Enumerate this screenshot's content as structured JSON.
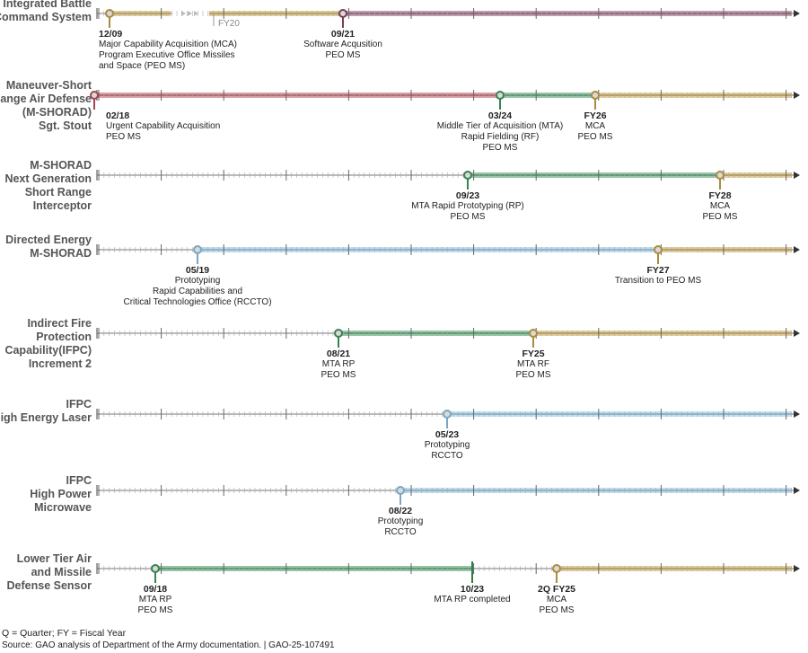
{
  "colors": {
    "mca": "#c9a44a",
    "software": "#8c4a6a",
    "urgent": "#c2505c",
    "mta": "#3f9a5e",
    "prototyping": "#8cc4e6",
    "axis": "#777777"
  },
  "rows": [
    {
      "title": [
        "Integrated Battle",
        "Command System"
      ],
      "fy_label": "FY20",
      "events": [
        {
          "date": "12/09",
          "lines": [
            "Major Capability Acquisition (MCA)",
            "Program Executive Office Missiles",
            "and Space (PEO MS)"
          ],
          "color": "mca"
        },
        {
          "date": "09/21",
          "lines": [
            "Software Acqusition",
            "PEO MS"
          ],
          "color": "software"
        }
      ]
    },
    {
      "title": [
        "Maneuver-Short",
        "Range Air Defense",
        "(M-SHORAD)",
        "Sgt. Stout"
      ],
      "events": [
        {
          "date": "02/18",
          "lines": [
            "Urgent Capability Acquisition",
            "PEO MS"
          ],
          "color": "urgent"
        },
        {
          "date": "03/24",
          "lines": [
            "Middle Tier of Acquisition (MTA)",
            "Rapid Fielding (RF)",
            "PEO MS"
          ],
          "color": "mta"
        },
        {
          "date": "FY26",
          "lines": [
            "MCA",
            "PEO MS"
          ],
          "color": "mca"
        }
      ]
    },
    {
      "title": [
        "M-SHORAD",
        "Next Generation",
        "Short Range",
        "Interceptor"
      ],
      "events": [
        {
          "date": "09/23",
          "lines": [
            "MTA Rapid Prototyping (RP)",
            "PEO MS"
          ],
          "color": "mta"
        },
        {
          "date": "FY28",
          "lines": [
            "MCA",
            "PEO MS"
          ],
          "color": "mca"
        }
      ]
    },
    {
      "title": [
        "Directed Energy",
        "M-SHORAD"
      ],
      "events": [
        {
          "date": "05/19",
          "lines": [
            "Prototyping",
            "Rapid Capabilities and",
            "Critical Technologies Office (RCCTO)"
          ],
          "color": "prototyping"
        },
        {
          "date": "FY27",
          "lines": [
            "Transition to PEO MS"
          ],
          "color": "mca"
        }
      ]
    },
    {
      "title": [
        "Indirect Fire",
        "Protection",
        "Capability(IFPC)",
        "Increment 2"
      ],
      "events": [
        {
          "date": "08/21",
          "lines": [
            "MTA RP",
            "PEO MS"
          ],
          "color": "mta"
        },
        {
          "date": "FY25",
          "lines": [
            "MTA RF",
            "PEO MS"
          ],
          "color": "mca"
        }
      ]
    },
    {
      "title": [
        "IFPC",
        "High Energy Laser"
      ],
      "events": [
        {
          "date": "05/23",
          "lines": [
            "Prototyping",
            "RCCTO"
          ],
          "color": "prototyping"
        }
      ]
    },
    {
      "title": [
        "IFPC",
        "High Power",
        "Microwave"
      ],
      "events": [
        {
          "date": "08/22",
          "lines": [
            "Prototyping",
            "RCCTO"
          ],
          "color": "prototyping"
        }
      ]
    },
    {
      "title": [
        "Lower Tier Air",
        "and Missile",
        "Defense Sensor"
      ],
      "events": [
        {
          "date": "09/18",
          "lines": [
            "MTA RP",
            "PEO MS"
          ],
          "color": "mta"
        },
        {
          "date": "10/23",
          "lines": [
            "MTA RP completed"
          ],
          "color": "mta",
          "end": true
        },
        {
          "date": "2Q FY25",
          "lines": [
            "MCA",
            "PEO MS"
          ],
          "color": "mca"
        }
      ]
    }
  ],
  "footer": {
    "note": "Q = Quarter; FY = Fiscal Year",
    "source": "Source: GAO analysis of Department of the Army documentation.  |  GAO-25-107491"
  }
}
